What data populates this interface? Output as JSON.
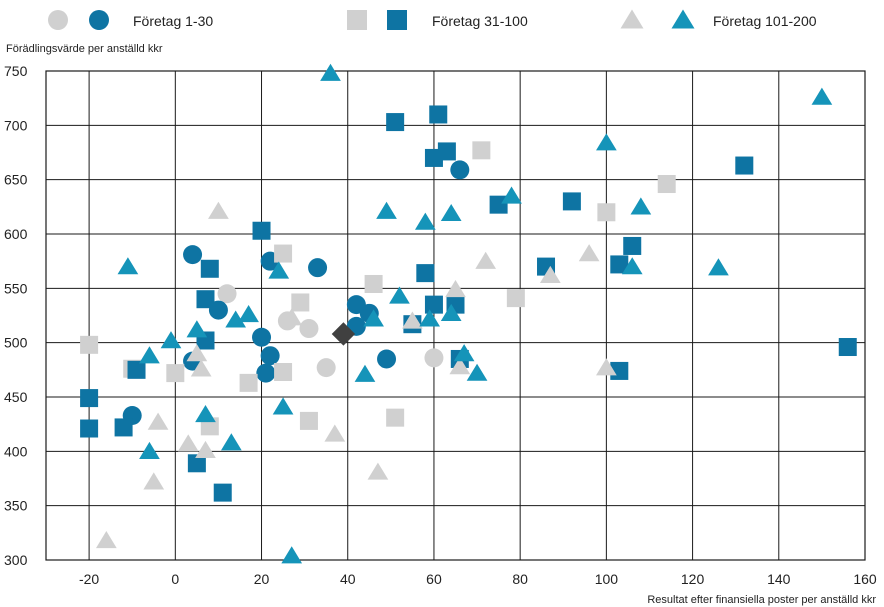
{
  "chart_data": {
    "type": "scatter",
    "title": "",
    "ylabel": "Förädlingsvärde per anställd kkr",
    "xlabel": "Resultat efter finansiella poster per anställd kkr",
    "xlim": [
      -30,
      160
    ],
    "ylim": [
      300,
      750
    ],
    "x_ticks": [
      -20,
      0,
      20,
      40,
      60,
      80,
      100,
      120,
      140,
      160
    ],
    "y_ticks": [
      300,
      350,
      400,
      450,
      500,
      550,
      600,
      650,
      700,
      750
    ],
    "grid": true,
    "legend_position": "top",
    "colors": {
      "light": "#d0d0d0",
      "dark": "#0e74a3",
      "triangle": "#1594b9",
      "marker": "#404040"
    },
    "legend": [
      {
        "label": "Företag 1-30",
        "shape": "circle"
      },
      {
        "label": "Företag 31-100",
        "shape": "square"
      },
      {
        "label": "Företag 101-200",
        "shape": "triangle"
      }
    ],
    "series": [
      {
        "shape": "circle",
        "tone": "light",
        "points": [
          [
            12,
            545
          ],
          [
            26,
            520
          ],
          [
            31,
            513
          ],
          [
            35,
            477
          ],
          [
            60,
            486
          ]
        ]
      },
      {
        "shape": "circle",
        "tone": "dark",
        "points": [
          [
            -10,
            433
          ],
          [
            4,
            483
          ],
          [
            4,
            581
          ],
          [
            10,
            530
          ],
          [
            20,
            505
          ],
          [
            21,
            472
          ],
          [
            22,
            575
          ],
          [
            22,
            488
          ],
          [
            33,
            569
          ],
          [
            42,
            535
          ],
          [
            42,
            515
          ],
          [
            45,
            527
          ],
          [
            49,
            485
          ],
          [
            66,
            659
          ]
        ]
      },
      {
        "shape": "square",
        "tone": "light",
        "points": [
          [
            -20,
            498
          ],
          [
            -10,
            476
          ],
          [
            0,
            472
          ],
          [
            8,
            423
          ],
          [
            17,
            463
          ],
          [
            25,
            473
          ],
          [
            25,
            582
          ],
          [
            29,
            537
          ],
          [
            31,
            428
          ],
          [
            46,
            554
          ],
          [
            51,
            431
          ],
          [
            71,
            677
          ],
          [
            79,
            541
          ],
          [
            100,
            620
          ],
          [
            114,
            646
          ]
        ]
      },
      {
        "shape": "square",
        "tone": "dark",
        "points": [
          [
            -20,
            449
          ],
          [
            -20,
            421
          ],
          [
            -12,
            422
          ],
          [
            -9,
            475
          ],
          [
            5,
            389
          ],
          [
            7,
            540
          ],
          [
            7,
            502
          ],
          [
            8,
            568
          ],
          [
            11,
            362
          ],
          [
            20,
            603
          ],
          [
            51,
            703
          ],
          [
            55,
            517
          ],
          [
            58,
            564
          ],
          [
            60,
            535
          ],
          [
            60,
            670
          ],
          [
            61,
            710
          ],
          [
            63,
            676
          ],
          [
            65,
            535
          ],
          [
            66,
            485
          ],
          [
            75,
            627
          ],
          [
            86,
            570
          ],
          [
            92,
            630
          ],
          [
            103,
            572
          ],
          [
            103,
            474
          ],
          [
            106,
            589
          ],
          [
            132,
            663
          ],
          [
            156,
            496
          ]
        ]
      },
      {
        "shape": "triangle",
        "tone": "light",
        "points": [
          [
            -16,
            318
          ],
          [
            -5,
            372
          ],
          [
            -4,
            427
          ],
          [
            3,
            407
          ],
          [
            5,
            490
          ],
          [
            6,
            476
          ],
          [
            7,
            401
          ],
          [
            10,
            621
          ],
          [
            27,
            523
          ],
          [
            37,
            416
          ],
          [
            47,
            381
          ],
          [
            55,
            520
          ],
          [
            65,
            549
          ],
          [
            66,
            478
          ],
          [
            72,
            575
          ],
          [
            87,
            562
          ],
          [
            96,
            582
          ],
          [
            100,
            477
          ]
        ]
      },
      {
        "shape": "triangle",
        "tone": "dark",
        "points": [
          [
            -11,
            570
          ],
          [
            -6,
            400
          ],
          [
            -6,
            488
          ],
          [
            -1,
            502
          ],
          [
            5,
            512
          ],
          [
            7,
            434
          ],
          [
            13,
            408
          ],
          [
            14,
            521
          ],
          [
            17,
            526
          ],
          [
            24,
            566
          ],
          [
            25,
            441
          ],
          [
            27,
            304
          ],
          [
            36,
            748
          ],
          [
            44,
            471
          ],
          [
            46,
            522
          ],
          [
            49,
            621
          ],
          [
            52,
            543
          ],
          [
            58,
            611
          ],
          [
            59,
            522
          ],
          [
            64,
            619
          ],
          [
            64,
            527
          ],
          [
            67,
            490
          ],
          [
            70,
            472
          ],
          [
            78,
            635
          ],
          [
            100,
            684
          ],
          [
            106,
            570
          ],
          [
            108,
            625
          ],
          [
            126,
            569
          ],
          [
            150,
            726
          ]
        ]
      },
      {
        "shape": "diamond",
        "tone": "marker",
        "points": [
          [
            39,
            508
          ]
        ]
      }
    ]
  }
}
